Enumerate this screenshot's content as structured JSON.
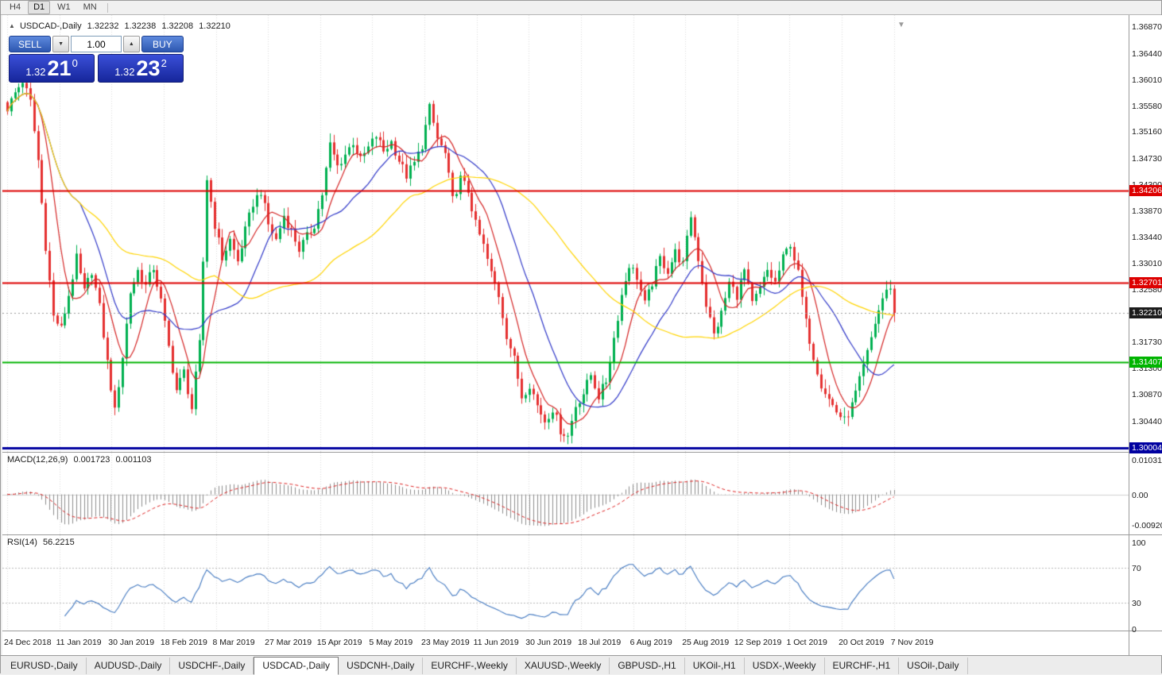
{
  "toolbar": {
    "timeframes": [
      {
        "label": "H4",
        "active": false
      },
      {
        "label": "D1",
        "active": true
      },
      {
        "label": "W1",
        "active": false
      },
      {
        "label": "MN",
        "active": false
      }
    ]
  },
  "icons": {
    "title_marker": "▲",
    "spin_up": "▲",
    "spin_down": "▼",
    "shift_marker": "▼"
  },
  "chart": {
    "title": "USDCAD-,Daily",
    "ohlc": {
      "open": "1.32232",
      "high": "1.32238",
      "low": "1.32208",
      "close": "1.32210"
    },
    "trade_panel": {
      "sell_label": "SELL",
      "buy_label": "BUY",
      "volume": "1.00",
      "sell_price_prefix": "1.32",
      "sell_price_big": "21",
      "sell_price_sup": "0",
      "buy_price_prefix": "1.32",
      "buy_price_big": "23",
      "buy_price_sup": "2"
    },
    "axis_labels": [
      "1.36870",
      "1.36440",
      "1.36010",
      "1.35580",
      "1.35160",
      "1.34730",
      "1.34300",
      "1.33870",
      "1.33440",
      "1.33010",
      "1.32580",
      "1.31730",
      "1.31300",
      "1.30870",
      "1.30440"
    ],
    "levels": [
      {
        "price": 1.34206,
        "label": "1.34206",
        "color": "#dd0000",
        "weight": 2
      },
      {
        "price": 1.32701,
        "label": "1.32701",
        "color": "#dd0000",
        "weight": 2
      },
      {
        "price": 1.31407,
        "label": "1.31407",
        "color": "#00b400",
        "weight": 2
      },
      {
        "price": 1.30004,
        "label": "1.30004",
        "color": "#0000a0",
        "weight": 3
      }
    ],
    "current_price": {
      "value": 1.3221,
      "label": "1.32210",
      "tag_color": "#1c1c1c"
    }
  },
  "indicators": {
    "macd": {
      "label": "MACD(12,26,9)",
      "value_main": "0.001723",
      "value_signal": "0.001103",
      "fast": 12,
      "slow": 26,
      "signal": 9,
      "axis_labels": [
        "0.010311",
        "0.00",
        "-0.009203"
      ],
      "display_range": {
        "min": -0.0122,
        "max": 0.0125
      },
      "histogram_color": "#8c8c8c",
      "signal_color": "#dd2222"
    },
    "rsi": {
      "label": "RSI(14)",
      "value": "56.2215",
      "period": 14,
      "levels": [
        70,
        30
      ],
      "axis_labels": [
        "100",
        "70",
        "30",
        "0"
      ],
      "display_range": {
        "min": -3,
        "max": 108
      },
      "line_color": "#3f76bf"
    }
  },
  "date_axis": {
    "labels": [
      "24 Dec 2018",
      "11 Jan 2019",
      "30 Jan 2019",
      "18 Feb 2019",
      "8 Mar 2019",
      "27 Mar 2019",
      "15 Apr 2019",
      "5 May 2019",
      "23 May 2019",
      "11 Jun 2019",
      "30 Jun 2019",
      "18 Jul 2019",
      "6 Aug 2019",
      "25 Aug 2019",
      "12 Sep 2019",
      "1 Oct 2019",
      "20 Oct 2019",
      "7 Nov 2019"
    ]
  },
  "tabs": [
    {
      "label": "EURUSD-,Daily",
      "active": false
    },
    {
      "label": "AUDUSD-,Daily",
      "active": false
    },
    {
      "label": "USDCHF-,Daily",
      "active": false
    },
    {
      "label": "USDCAD-,Daily",
      "active": true
    },
    {
      "label": "USDCNH-,Daily",
      "active": false
    },
    {
      "label": "EURCHF-,Weekly",
      "active": false
    },
    {
      "label": "XAUUSD-,Weekly",
      "active": false
    },
    {
      "label": "GBPUSD-,H1",
      "active": false
    },
    {
      "label": "UKOil-,H1",
      "active": false
    },
    {
      "label": "USDX-,Weekly",
      "active": false
    },
    {
      "label": "EURCHF-,H1",
      "active": false
    },
    {
      "label": "USOil-,Daily",
      "active": false
    }
  ],
  "chart_data": {
    "type": "candlestick",
    "candles_count": 232,
    "price_axis": {
      "top": 1.3707,
      "bottom": 1.29943
    },
    "up_color": "#00b050",
    "down_color": "#e53030",
    "grid_color": "#d9d9d9",
    "moving_averages": [
      {
        "period": 8,
        "color": "#d42424"
      },
      {
        "period": 20,
        "color": "#3038c8"
      },
      {
        "period": 55,
        "color": "#ffd400"
      }
    ],
    "waypoints": [
      [
        0,
        1.3555
      ],
      [
        2,
        1.358
      ],
      [
        4,
        1.36
      ],
      [
        6,
        1.3565
      ],
      [
        8,
        1.347
      ],
      [
        10,
        1.333
      ],
      [
        12,
        1.3215
      ],
      [
        14,
        1.3195
      ],
      [
        16,
        1.325
      ],
      [
        18,
        1.331
      ],
      [
        20,
        1.3255
      ],
      [
        22,
        1.329
      ],
      [
        24,
        1.323
      ],
      [
        26,
        1.314
      ],
      [
        28,
        1.306
      ],
      [
        30,
        1.315
      ],
      [
        32,
        1.3255
      ],
      [
        34,
        1.329
      ],
      [
        36,
        1.3265
      ],
      [
        38,
        1.3295
      ],
      [
        40,
        1.324
      ],
      [
        42,
        1.3165
      ],
      [
        44,
        1.3095
      ],
      [
        46,
        1.3125
      ],
      [
        48,
        1.3065
      ],
      [
        50,
        1.317
      ],
      [
        52,
        1.344
      ],
      [
        54,
        1.3365
      ],
      [
        56,
        1.331
      ],
      [
        58,
        1.334
      ],
      [
        60,
        1.3305
      ],
      [
        62,
        1.3355
      ],
      [
        64,
        1.34
      ],
      [
        66,
        1.342
      ],
      [
        68,
        1.3365
      ],
      [
        70,
        1.334
      ],
      [
        72,
        1.338
      ],
      [
        74,
        1.3355
      ],
      [
        76,
        1.3325
      ],
      [
        78,
        1.3345
      ],
      [
        80,
        1.3365
      ],
      [
        82,
        1.3415
      ],
      [
        84,
        1.3495
      ],
      [
        86,
        1.346
      ],
      [
        88,
        1.348
      ],
      [
        90,
        1.35
      ],
      [
        92,
        1.347
      ],
      [
        94,
        1.349
      ],
      [
        96,
        1.351
      ],
      [
        98,
        1.3485
      ],
      [
        100,
        1.35
      ],
      [
        102,
        1.347
      ],
      [
        104,
        1.3445
      ],
      [
        106,
        1.3465
      ],
      [
        108,
        1.3495
      ],
      [
        110,
        1.3555
      ],
      [
        112,
        1.3505
      ],
      [
        114,
        1.348
      ],
      [
        116,
        1.3405
      ],
      [
        118,
        1.344
      ],
      [
        120,
        1.342
      ],
      [
        122,
        1.3365
      ],
      [
        124,
        1.333
      ],
      [
        126,
        1.3285
      ],
      [
        128,
        1.325
      ],
      [
        130,
        1.3185
      ],
      [
        132,
        1.3145
      ],
      [
        134,
        1.3085
      ],
      [
        136,
        1.3105
      ],
      [
        138,
        1.307
      ],
      [
        140,
        1.3045
      ],
      [
        142,
        1.3065
      ],
      [
        144,
        1.303
      ],
      [
        146,
        1.302
      ],
      [
        148,
        1.307
      ],
      [
        150,
        1.309
      ],
      [
        152,
        1.312
      ],
      [
        154,
        1.3085
      ],
      [
        156,
        1.311
      ],
      [
        158,
        1.318
      ],
      [
        160,
        1.325
      ],
      [
        162,
        1.33
      ],
      [
        164,
        1.328
      ],
      [
        166,
        1.3235
      ],
      [
        168,
        1.327
      ],
      [
        170,
        1.331
      ],
      [
        172,
        1.329
      ],
      [
        174,
        1.332
      ],
      [
        176,
        1.33
      ],
      [
        178,
        1.338
      ],
      [
        180,
        1.331
      ],
      [
        182,
        1.3235
      ],
      [
        184,
        1.3185
      ],
      [
        186,
        1.322
      ],
      [
        188,
        1.327
      ],
      [
        190,
        1.325
      ],
      [
        192,
        1.329
      ],
      [
        194,
        1.3235
      ],
      [
        196,
        1.326
      ],
      [
        198,
        1.329
      ],
      [
        200,
        1.327
      ],
      [
        202,
        1.331
      ],
      [
        204,
        1.3335
      ],
      [
        206,
        1.3285
      ],
      [
        208,
        1.3205
      ],
      [
        210,
        1.315
      ],
      [
        212,
        1.3105
      ],
      [
        214,
        1.308
      ],
      [
        216,
        1.306
      ],
      [
        218,
        1.3045
      ],
      [
        220,
        1.307
      ],
      [
        222,
        1.311
      ],
      [
        224,
        1.3155
      ],
      [
        226,
        1.3205
      ],
      [
        228,
        1.3245
      ],
      [
        230,
        1.3265
      ],
      [
        231,
        1.3221
      ]
    ]
  }
}
